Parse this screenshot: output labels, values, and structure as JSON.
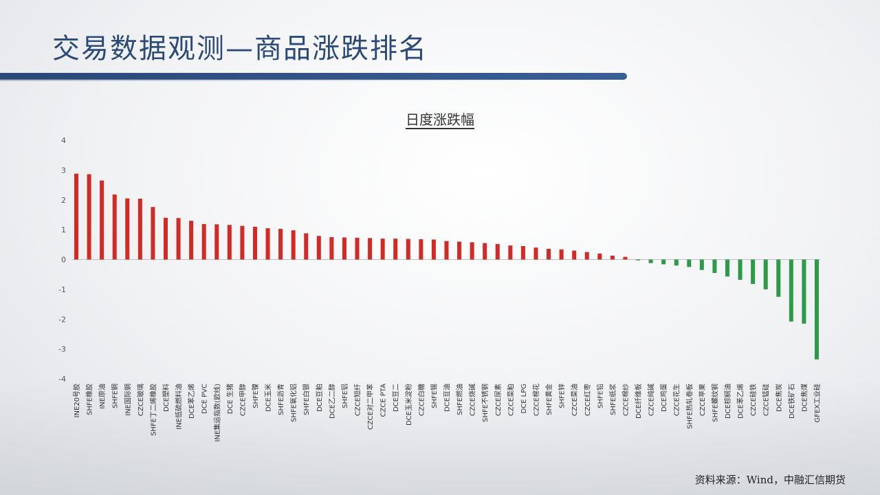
{
  "title": "交易数据观测—商品涨跌排名",
  "source": "资料来源：Wind，中融汇信期货",
  "colors": {
    "up": "#d42a25",
    "down": "#2c9a46",
    "title": "#2b4a7a",
    "bar_accent": "#2a4878"
  },
  "chart_data": {
    "type": "bar",
    "title": "日度涨跌幅",
    "xlabel": "",
    "ylabel": "",
    "ylim": [
      -4,
      4
    ],
    "yticks": [
      4,
      3,
      2,
      1,
      0,
      -1,
      -2,
      -3,
      -4
    ],
    "grid": false,
    "legend": "none",
    "categories": [
      "INE20号胶",
      "SHFE橡胶",
      "INE原油",
      "SHFE铜",
      "INE国际铜",
      "CZCE玻璃",
      "SHFE丁二烯橡胶",
      "DCE塑料",
      "INE低硫燃料油",
      "DCE苯乙烯",
      "DCE PVC",
      "INE集运指数(欧线)",
      "DCE 生猪",
      "CZCE甲醇",
      "SHFE镍",
      "DCE玉米",
      "SHFE沥青",
      "SHFE氧化铝",
      "SHFE白银",
      "DCE豆粕",
      "DCE乙二醇",
      "SHFE铝",
      "CZCE短纤",
      "CZCE对二甲苯",
      "CZCE PTA",
      "DCE豆二",
      "DCE玉米淀粉",
      "CZCE白糖",
      "SHFE锡",
      "DCE豆油",
      "SHFE燃油",
      "CZCE烧碱",
      "SHFE不锈钢",
      "CZCE尿素",
      "CZCE菜粕",
      "DCE LPG",
      "CZCE棉花",
      "SHFE黄金",
      "SHFE锌",
      "CZCE菜油",
      "CZCE红枣",
      "SHFE铅",
      "SHFE纸浆",
      "CZCE棉纱",
      "DCE纤维板",
      "CZCE纯碱",
      "DCE鸡蛋",
      "CZCE花生",
      "SHFE热轧卷板",
      "CZCE苹果",
      "SHFE螺纹钢",
      "DCE棕榈油",
      "DCE苯乙烯",
      "CZCE硅铁",
      "CZCE锰硅",
      "DCE焦炭",
      "DCE铁矿石",
      "DCE焦煤",
      "GFEX工业硅"
    ],
    "values": [
      2.88,
      2.86,
      2.65,
      2.18,
      2.05,
      2.04,
      1.76,
      1.4,
      1.39,
      1.3,
      1.19,
      1.18,
      1.16,
      1.13,
      1.1,
      1.05,
      1.03,
      0.98,
      0.88,
      0.79,
      0.75,
      0.74,
      0.73,
      0.72,
      0.7,
      0.7,
      0.69,
      0.68,
      0.67,
      0.62,
      0.6,
      0.58,
      0.55,
      0.52,
      0.47,
      0.45,
      0.4,
      0.36,
      0.34,
      0.3,
      0.25,
      0.2,
      0.13,
      0.09,
      -0.03,
      -0.12,
      -0.16,
      -0.2,
      -0.25,
      -0.35,
      -0.45,
      -0.57,
      -0.68,
      -0.82,
      -1.0,
      -1.25,
      -2.08,
      -2.15,
      -3.35
    ]
  }
}
